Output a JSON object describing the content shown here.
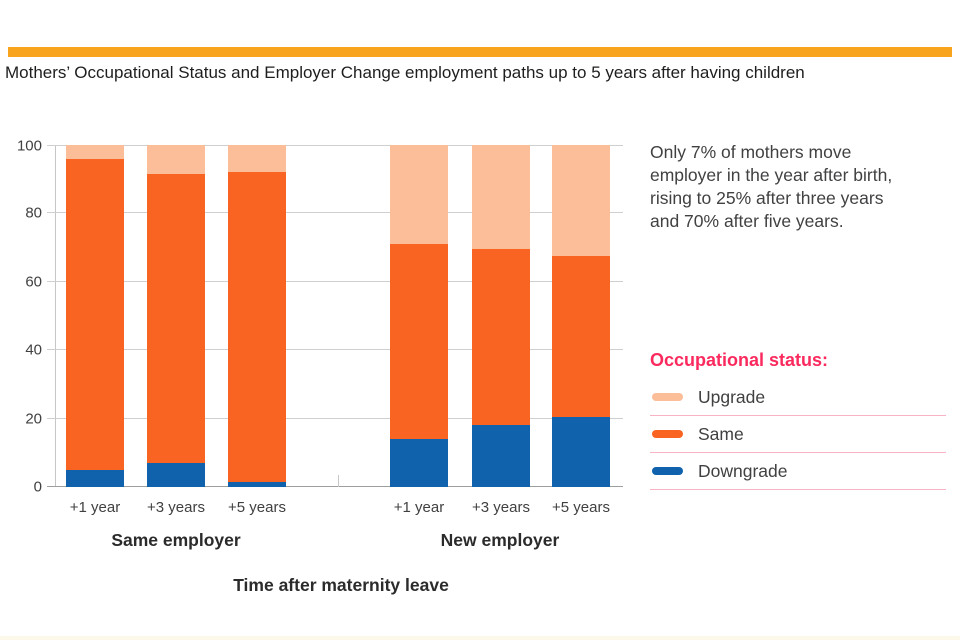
{
  "header": {
    "title": "Mothers’ Occupational Status and Employer Change employment paths up to 5 years after having children"
  },
  "theme": {
    "accent_bar": "#f9a41d",
    "background": "#ffffff",
    "footer_strip": "#fdf9ea",
    "text": "#414042",
    "grid": "#cfcfcf",
    "axis": "#9e9e9e"
  },
  "annotation": {
    "lines": [
      "Only 7% of mothers move",
      "employer in the year after birth,",
      "rising to 25% after three years",
      "and 70% after five years."
    ]
  },
  "legend": {
    "title": "Occupational status:",
    "title_color": "#fb2a5e",
    "divider_color": "#f9b3c6",
    "items": [
      {
        "label": "Upgrade",
        "color": "#fcbd99"
      },
      {
        "label": "Same",
        "color": "#f96423"
      },
      {
        "label": "Downgrade",
        "color": "#1062ac"
      }
    ]
  },
  "chart_data": {
    "type": "bar",
    "stacked": true,
    "title": "Mothers’ Occupational Status and Employer Change employment paths up to 5 years after having children",
    "groups": [
      "Same employer",
      "New employer"
    ],
    "categories": [
      "+1 year",
      "+3 years",
      "+5 years"
    ],
    "series": [
      {
        "name": "Downgrade",
        "color": "#1062ac",
        "values": [
          [
            5,
            7,
            1.5
          ],
          [
            14,
            18,
            20.5
          ]
        ]
      },
      {
        "name": "Same",
        "color": "#f96423",
        "values": [
          [
            91,
            84.5,
            90.5
          ],
          [
            57,
            51.5,
            47
          ]
        ]
      },
      {
        "name": "Upgrade",
        "color": "#fcbd99",
        "values": [
          [
            4,
            8.5,
            8
          ],
          [
            29,
            30.5,
            32.5
          ]
        ]
      }
    ],
    "xlabel": "Time after maternity leave",
    "ylabel": "",
    "ylim": [
      0,
      100
    ],
    "yticks": [
      0,
      20,
      40,
      60,
      80,
      100
    ],
    "grid": true,
    "legend_position": "right"
  }
}
